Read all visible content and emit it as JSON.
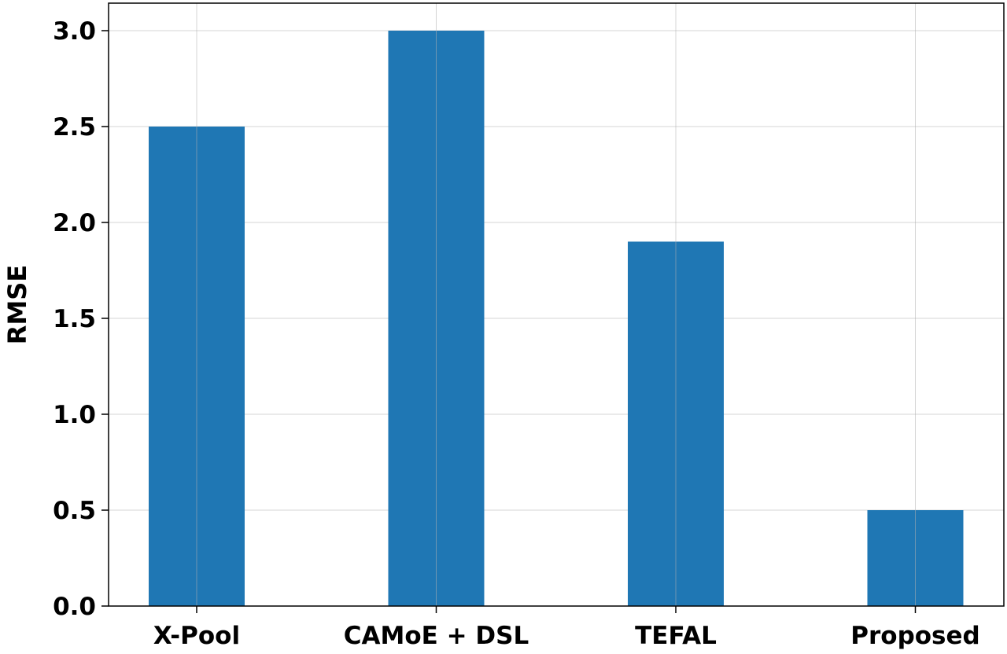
{
  "chart_data": {
    "type": "bar",
    "categories": [
      "X-Pool",
      "CAMoE + DSL",
      "TEFAL",
      "Proposed"
    ],
    "values": [
      2.5,
      3.0,
      1.9,
      0.5
    ],
    "title": "",
    "xlabel": "",
    "ylabel": "RMSE",
    "ylim": [
      0,
      3.15
    ],
    "yticks": [
      0.0,
      0.5,
      1.0,
      1.5,
      2.0,
      2.5,
      3.0
    ],
    "ytick_labels": [
      "0.0",
      "0.5",
      "1.0",
      "1.5",
      "2.0",
      "2.5",
      "3.0"
    ],
    "grid": true,
    "bar_color": "#1f77b4"
  }
}
